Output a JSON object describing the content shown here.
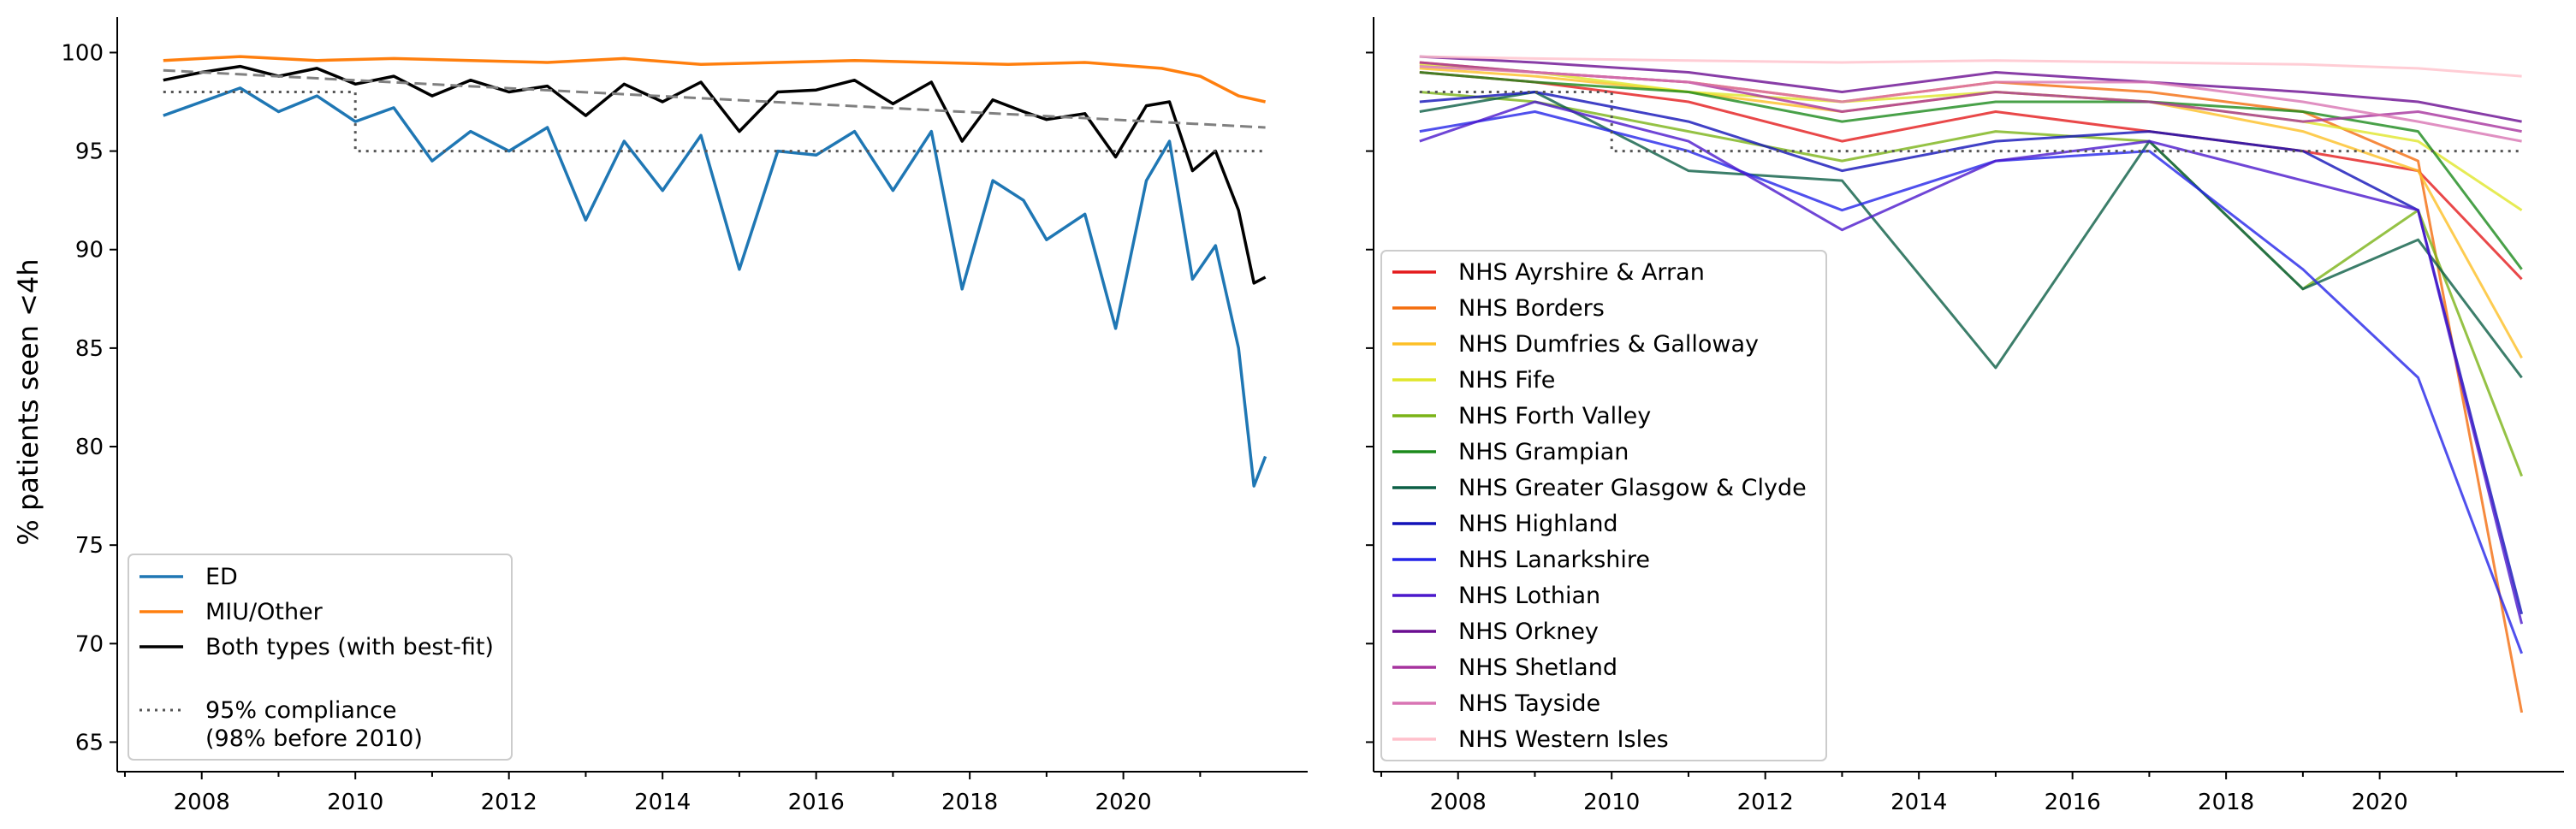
{
  "chart_data": [
    {
      "type": "line",
      "ylabel": "% patients seen <4h",
      "xlim": [
        2006.9,
        2022.4
      ],
      "ylim": [
        63.5,
        101.8
      ],
      "xticks": [
        2008,
        2010,
        2012,
        2014,
        2016,
        2018,
        2020
      ],
      "xtick_labels": [
        "2008",
        "2010",
        "2012",
        "2014",
        "2016",
        "2018",
        "2020"
      ],
      "yticks": [
        65,
        70,
        75,
        80,
        85,
        90,
        95,
        100
      ],
      "ytick_labels": [
        "65",
        "70",
        "75",
        "80",
        "85",
        "90",
        "95",
        "100"
      ],
      "legend_position": "lower-left",
      "series": [
        {
          "name": "ED",
          "color": "#1f77b4",
          "x": [
            2007.5,
            2008.0,
            2008.5,
            2009.0,
            2009.5,
            2010.0,
            2010.5,
            2011.0,
            2011.5,
            2012.0,
            2012.5,
            2013.0,
            2013.5,
            2014.0,
            2014.5,
            2015.0,
            2015.5,
            2016.0,
            2016.5,
            2017.0,
            2017.5,
            2017.9,
            2018.3,
            2018.7,
            2019.0,
            2019.5,
            2019.9,
            2020.3,
            2020.6,
            2020.9,
            2021.2,
            2021.5,
            2021.7,
            2021.85
          ],
          "y": [
            96.8,
            97.5,
            98.2,
            97.0,
            97.8,
            96.5,
            97.2,
            94.5,
            96.0,
            95.0,
            96.2,
            91.5,
            95.5,
            93.0,
            95.8,
            89.0,
            95.0,
            94.8,
            96.0,
            93.0,
            96.0,
            88.0,
            93.5,
            92.5,
            90.5,
            91.8,
            86.0,
            93.5,
            95.5,
            88.5,
            90.2,
            85.0,
            78.0,
            79.5
          ]
        },
        {
          "name": "MIU/Other",
          "color": "#ff7f0e",
          "x": [
            2007.5,
            2008.5,
            2009.5,
            2010.5,
            2011.5,
            2012.5,
            2013.5,
            2014.5,
            2015.5,
            2016.5,
            2017.5,
            2018.5,
            2019.5,
            2020.5,
            2021.0,
            2021.5,
            2021.85
          ],
          "y": [
            99.6,
            99.8,
            99.6,
            99.7,
            99.6,
            99.5,
            99.7,
            99.4,
            99.5,
            99.6,
            99.5,
            99.4,
            99.5,
            99.2,
            98.8,
            97.8,
            97.5
          ]
        },
        {
          "name": "Both types (with best-fit)",
          "color": "#000000",
          "x": [
            2007.5,
            2008.0,
            2008.5,
            2009.0,
            2009.5,
            2010.0,
            2010.5,
            2011.0,
            2011.5,
            2012.0,
            2012.5,
            2013.0,
            2013.5,
            2014.0,
            2014.5,
            2015.0,
            2015.5,
            2016.0,
            2016.5,
            2017.0,
            2017.5,
            2017.9,
            2018.3,
            2018.7,
            2019.0,
            2019.5,
            2019.9,
            2020.3,
            2020.6,
            2020.9,
            2021.2,
            2021.5,
            2021.7,
            2021.85
          ],
          "y": [
            98.6,
            99.0,
            99.3,
            98.8,
            99.2,
            98.4,
            98.8,
            97.8,
            98.6,
            98.0,
            98.3,
            96.8,
            98.4,
            97.5,
            98.5,
            96.0,
            98.0,
            98.1,
            98.6,
            97.4,
            98.5,
            95.5,
            97.6,
            97.0,
            96.6,
            96.9,
            94.7,
            97.3,
            97.5,
            94.0,
            95.0,
            92.0,
            88.3,
            88.6
          ]
        },
        {
          "name": "best-fit",
          "color": "#808080",
          "dash": "dashed",
          "x": [
            2007.5,
            2021.85
          ],
          "y": [
            99.1,
            96.2
          ]
        },
        {
          "name": "95% compliance (98% before 2010)",
          "color": "#555555",
          "dash": "dotted",
          "x": [
            2007.5,
            2010.0,
            2010.0,
            2021.85
          ],
          "y": [
            98.0,
            98.0,
            95.0,
            95.0
          ]
        }
      ]
    },
    {
      "type": "line",
      "xlim": [
        2006.9,
        2022.4
      ],
      "ylim": [
        63.5,
        101.8
      ],
      "xticks": [
        2008,
        2010,
        2012,
        2014,
        2016,
        2018,
        2020
      ],
      "xtick_labels": [
        "2008",
        "2010",
        "2012",
        "2014",
        "2016",
        "2018",
        "2020"
      ],
      "legend_position": "center-left",
      "series": [
        {
          "name": "NHS Ayrshire & Arran",
          "color": "#e41a1c",
          "x": [
            2007.5,
            2009.0,
            2011.0,
            2013.0,
            2015.0,
            2017.0,
            2019.0,
            2020.5,
            2021.85
          ],
          "y": [
            99.0,
            98.5,
            97.5,
            95.5,
            97.0,
            96.0,
            95.0,
            94.0,
            88.5
          ]
        },
        {
          "name": "NHS Borders",
          "color": "#f46d0e",
          "x": [
            2007.5,
            2009.0,
            2011.0,
            2013.0,
            2015.0,
            2017.0,
            2019.0,
            2020.5,
            2021.85
          ],
          "y": [
            99.5,
            99.0,
            98.5,
            97.5,
            98.5,
            98.0,
            97.0,
            94.5,
            66.5
          ]
        },
        {
          "name": "NHS Dumfries & Galloway",
          "color": "#fdbf26",
          "x": [
            2007.5,
            2009.0,
            2011.0,
            2013.0,
            2015.0,
            2017.0,
            2019.0,
            2020.5,
            2021.85
          ],
          "y": [
            99.2,
            98.8,
            98.0,
            97.0,
            98.0,
            97.5,
            96.0,
            94.0,
            84.5
          ]
        },
        {
          "name": "NHS Fife",
          "color": "#e0e62a",
          "x": [
            2007.5,
            2009.0,
            2011.0,
            2013.0,
            2015.0,
            2017.0,
            2019.0,
            2020.5,
            2021.85
          ],
          "y": [
            99.4,
            99.0,
            98.0,
            97.5,
            98.0,
            97.5,
            96.5,
            95.5,
            92.0
          ]
        },
        {
          "name": "NHS Forth Valley",
          "color": "#7ab317",
          "x": [
            2007.5,
            2009.0,
            2011.0,
            2013.0,
            2015.0,
            2017.0,
            2019.0,
            2020.5,
            2021.85
          ],
          "y": [
            98.0,
            97.5,
            96.0,
            94.5,
            96.0,
            95.5,
            88.0,
            92.0,
            78.5
          ]
        },
        {
          "name": "NHS Grampian",
          "color": "#1b8a1b",
          "x": [
            2007.5,
            2009.0,
            2011.0,
            2013.0,
            2015.0,
            2017.0,
            2019.0,
            2020.5,
            2021.85
          ],
          "y": [
            99.0,
            98.5,
            98.0,
            96.5,
            97.5,
            97.5,
            97.0,
            96.0,
            89.0
          ]
        },
        {
          "name": "NHS Greater Glasgow & Clyde",
          "color": "#0b5e45",
          "x": [
            2007.5,
            2009.0,
            2011.0,
            2013.0,
            2015.0,
            2017.0,
            2019.0,
            2020.5,
            2021.85
          ],
          "y": [
            97.0,
            98.0,
            94.0,
            93.5,
            84.0,
            95.5,
            88.0,
            90.5,
            83.5
          ]
        },
        {
          "name": "NHS Highland",
          "color": "#1212b8",
          "x": [
            2007.5,
            2009.0,
            2011.0,
            2013.0,
            2015.0,
            2017.0,
            2019.0,
            2020.5,
            2021.85
          ],
          "y": [
            97.5,
            98.0,
            96.5,
            94.0,
            95.5,
            96.0,
            95.0,
            92.0,
            71.5
          ]
        },
        {
          "name": "NHS Lanarkshire",
          "color": "#2424e8",
          "x": [
            2007.5,
            2009.0,
            2011.0,
            2013.0,
            2015.0,
            2017.0,
            2019.0,
            2020.5,
            2021.85
          ],
          "y": [
            96.0,
            97.0,
            95.0,
            92.0,
            94.5,
            95.0,
            89.0,
            83.5,
            69.5
          ]
        },
        {
          "name": "NHS Lothian",
          "color": "#4b18cc",
          "x": [
            2007.5,
            2009.0,
            2011.0,
            2013.0,
            2015.0,
            2017.0,
            2019.0,
            2020.5,
            2021.85
          ],
          "y": [
            95.5,
            97.5,
            95.5,
            91.0,
            94.5,
            95.5,
            93.5,
            92.0,
            71.0
          ]
        },
        {
          "name": "NHS Orkney",
          "color": "#6a0d91",
          "x": [
            2007.5,
            2009.0,
            2011.0,
            2013.0,
            2015.0,
            2017.0,
            2019.0,
            2020.5,
            2021.85
          ],
          "y": [
            99.8,
            99.5,
            99.0,
            98.0,
            99.0,
            98.5,
            98.0,
            97.5,
            96.5
          ]
        },
        {
          "name": "NHS Shetland",
          "color": "#a6339e",
          "x": [
            2007.5,
            2009.0,
            2011.0,
            2013.0,
            2015.0,
            2017.0,
            2019.0,
            2020.5,
            2021.85
          ],
          "y": [
            99.5,
            99.0,
            98.5,
            97.0,
            98.0,
            97.5,
            96.5,
            97.0,
            96.0
          ]
        },
        {
          "name": "NHS Tayside",
          "color": "#d874b3",
          "x": [
            2007.5,
            2009.0,
            2011.0,
            2013.0,
            2015.0,
            2017.0,
            2019.0,
            2020.5,
            2021.85
          ],
          "y": [
            99.3,
            99.0,
            98.5,
            97.5,
            98.5,
            98.5,
            97.5,
            96.5,
            95.5
          ]
        },
        {
          "name": "NHS Western Isles",
          "color": "#ffc0cb",
          "x": [
            2007.5,
            2009.0,
            2011.0,
            2013.0,
            2015.0,
            2017.0,
            2019.0,
            2020.5,
            2021.85
          ],
          "y": [
            99.8,
            99.7,
            99.6,
            99.5,
            99.6,
            99.5,
            99.4,
            99.2,
            98.8
          ]
        },
        {
          "name": "95% compliance (98% before 2010)",
          "color": "#555555",
          "dash": "dotted",
          "x": [
            2007.5,
            2010.0,
            2010.0,
            2021.85
          ],
          "y": [
            98.0,
            98.0,
            95.0,
            95.0
          ]
        }
      ]
    }
  ],
  "legend_left": {
    "items": [
      {
        "label": "ED",
        "color": "#1f77b4",
        "dash": "solid"
      },
      {
        "label": "MIU/Other",
        "color": "#ff7f0e",
        "dash": "solid"
      },
      {
        "label": "Both types (with best-fit)",
        "color": "#000000",
        "dash": "solid"
      }
    ],
    "compliance_line1": "95% compliance",
    "compliance_line2": "(98% before 2010)",
    "compliance_color": "#555555"
  }
}
